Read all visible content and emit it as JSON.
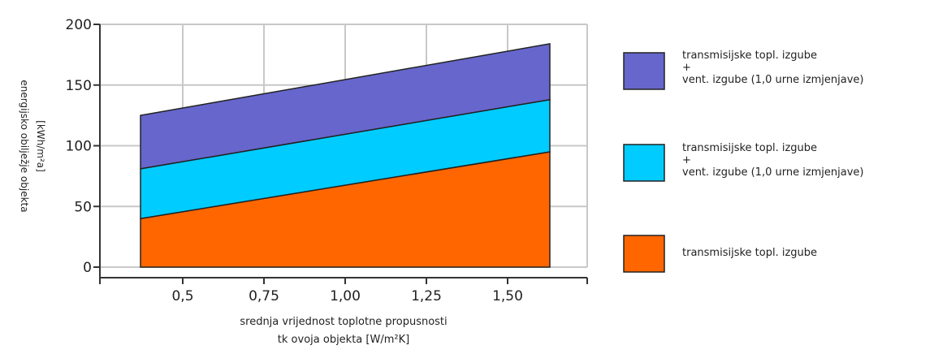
{
  "chart_data": {
    "type": "area",
    "stacked": true,
    "x": [
      0.37,
      1.63
    ],
    "xticks": [
      "0,5",
      "0,75",
      "1,00",
      "1,25",
      "1,50"
    ],
    "xtick_values": [
      0.5,
      0.75,
      1.0,
      1.25,
      1.5
    ],
    "yticks": [
      "0",
      "50",
      "100",
      "150",
      "200"
    ],
    "ytick_values": [
      0,
      50,
      100,
      150,
      200
    ],
    "ylim": [
      0,
      200
    ],
    "xlim": [
      0.245,
      1.745
    ],
    "grid": true,
    "legend_position": "right",
    "xlabel_lines": [
      "srednja vrijednost toplotne propusnosti",
      "tk ovoja objekta [W/m²K]"
    ],
    "ylabel_lines": [
      "energijsko obilježje objekta",
      "[kWh/m²a]"
    ],
    "series": [
      {
        "name": "transmisijske topl. izgube",
        "color": "#ff6600",
        "values": [
          40,
          95
        ]
      },
      {
        "name": "transmisijske topl. izgube + vent. izgube (1,0 urne izmjenjave)",
        "color": "#00ccff",
        "values": [
          41,
          43
        ]
      },
      {
        "name": "transmisijske topl. izgube + vent. izgube (1,0 urne izmjenjave)",
        "color": "#6666cc",
        "values": [
          44,
          46
        ]
      }
    ],
    "legend": [
      {
        "lines": [
          "transmisijske topl. izgube",
          "+",
          "vent. izgube (1,0 urne izmjenjave)"
        ],
        "color": "#6666cc"
      },
      {
        "lines": [
          "transmisijske topl. izgube",
          "+",
          "vent. izgube (1,0 urne izmjenjave)"
        ],
        "color": "#00ccff"
      },
      {
        "lines": [
          "transmisijske topl. izgube"
        ],
        "color": "#ff6600"
      }
    ]
  }
}
